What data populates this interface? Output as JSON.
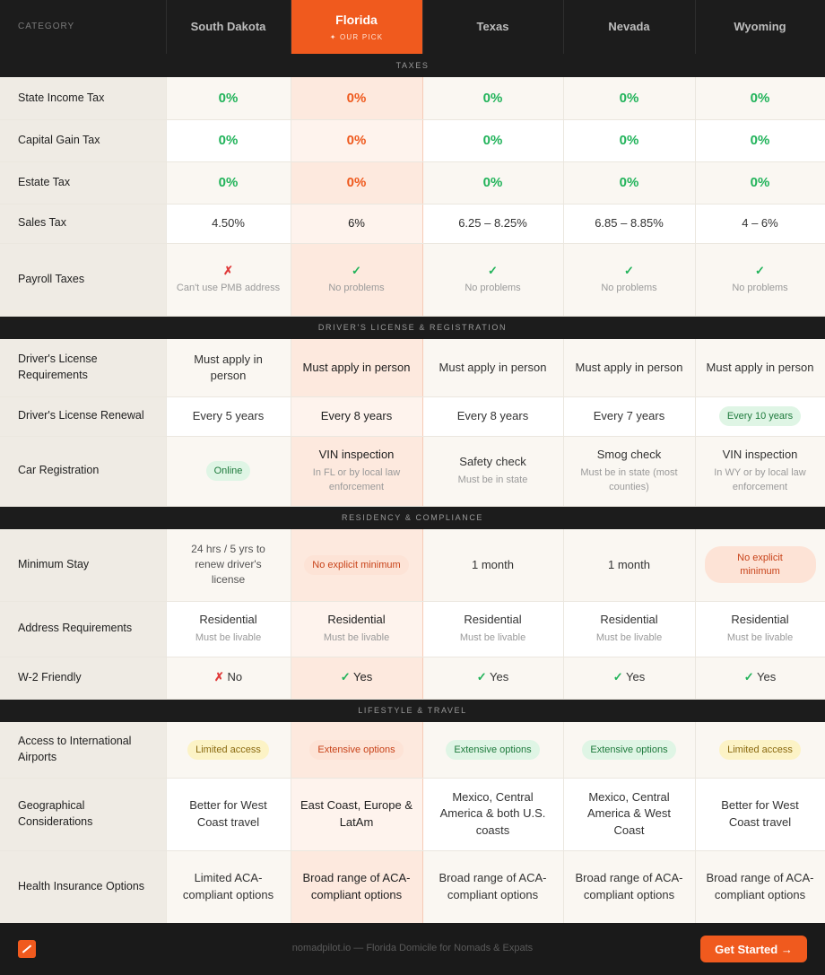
{
  "header": {
    "category_label": "CATEGORY",
    "states": [
      {
        "name": "South Dakota"
      },
      {
        "name": "Florida",
        "badge": "✦ OUR PICK"
      },
      {
        "name": "Texas"
      },
      {
        "name": "Nevada"
      },
      {
        "name": "Wyoming"
      }
    ]
  },
  "sections": [
    {
      "title": "TAXES",
      "rows": [
        {
          "label": "State Income Tax",
          "cells": [
            {
              "value": "0%"
            },
            {
              "value": "0%"
            },
            {
              "value": "0%"
            },
            {
              "value": "0%"
            },
            {
              "value": "0%"
            }
          ]
        },
        {
          "label": "Capital Gain Tax",
          "cells": [
            {
              "value": "0%"
            },
            {
              "value": "0%"
            },
            {
              "value": "0%"
            },
            {
              "value": "0%"
            },
            {
              "value": "0%"
            }
          ]
        },
        {
          "label": "Estate Tax",
          "cells": [
            {
              "value": "0%"
            },
            {
              "value": "0%"
            },
            {
              "value": "0%"
            },
            {
              "value": "0%"
            },
            {
              "value": "0%"
            }
          ]
        },
        {
          "label": "Sales Tax",
          "cells": [
            {
              "value": "4.50%"
            },
            {
              "value": "6%"
            },
            {
              "value": "6.25 – 8.25%"
            },
            {
              "value": "6.85 – 8.85%"
            },
            {
              "value": "4 – 6%"
            }
          ]
        },
        {
          "label": "Payroll Taxes",
          "cells": [
            {
              "mark": "✗",
              "note": "Can't use PMB address"
            },
            {
              "mark": "✓",
              "note": "No problems"
            },
            {
              "mark": "✓",
              "note": "No problems"
            },
            {
              "mark": "✓",
              "note": "No problems"
            },
            {
              "mark": "✓",
              "note": "No problems"
            }
          ]
        }
      ]
    },
    {
      "title": "DRIVER'S LICENSE & REGISTRATION",
      "rows": [
        {
          "label": "Driver's License Requirements",
          "cells": [
            {
              "value": "Must apply in person"
            },
            {
              "value": "Must apply in person"
            },
            {
              "value": "Must apply in person"
            },
            {
              "value": "Must apply in person"
            },
            {
              "value": "Must apply in person"
            }
          ]
        },
        {
          "label": "Driver's License Renewal",
          "cells": [
            {
              "value": "Every 5 years"
            },
            {
              "value": "Every 8 years"
            },
            {
              "value": "Every 8 years"
            },
            {
              "value": "Every 7 years"
            },
            {
              "pill": "Every 10 years",
              "color": "green"
            }
          ]
        },
        {
          "label": "Car Registration",
          "cells": [
            {
              "pill": "Online",
              "color": "green"
            },
            {
              "value": "VIN inspection",
              "note": "In FL or by local law enforcement"
            },
            {
              "value": "Safety check",
              "note": "Must be in state"
            },
            {
              "value": "Smog check",
              "note": "Must be in state (most counties)"
            },
            {
              "value": "VIN inspection",
              "note": "In WY or by local law enforcement"
            }
          ]
        }
      ]
    },
    {
      "title": "RESIDENCY & COMPLIANCE",
      "rows": [
        {
          "label": "Minimum Stay",
          "cells": [
            {
              "note": "24 hrs / 5 yrs to renew driver's license"
            },
            {
              "pill": "No explicit minimum",
              "color": "orange"
            },
            {
              "value": "1 month"
            },
            {
              "value": "1 month"
            },
            {
              "pill": "No explicit minimum",
              "color": "orange",
              "wide": true
            }
          ]
        },
        {
          "label": "Address Requirements",
          "cells": [
            {
              "value": "Residential",
              "note": "Must be livable"
            },
            {
              "value": "Residential",
              "note": "Must be livable"
            },
            {
              "value": "Residential",
              "note": "Must be livable"
            },
            {
              "value": "Residential",
              "note": "Must be livable"
            },
            {
              "value": "Residential",
              "note": "Must be livable"
            }
          ]
        },
        {
          "label": "W-2 Friendly",
          "cells": [
            {
              "mark": "✗",
              "value": "No"
            },
            {
              "mark": "✓",
              "value": "Yes"
            },
            {
              "mark": "✓",
              "value": "Yes"
            },
            {
              "mark": "✓",
              "value": "Yes"
            },
            {
              "mark": "✓",
              "value": "Yes"
            }
          ]
        }
      ]
    },
    {
      "title": "LIFESTYLE & TRAVEL",
      "rows": [
        {
          "label": "Access to International Airports",
          "cells": [
            {
              "pill": "Limited access",
              "color": "yellow"
            },
            {
              "pill": "Extensive options",
              "color": "orange"
            },
            {
              "pill": "Extensive options",
              "color": "green"
            },
            {
              "pill": "Extensive options",
              "color": "green"
            },
            {
              "pill": "Limited access",
              "color": "yellow"
            }
          ]
        },
        {
          "label": "Geographical Considerations",
          "cells": [
            {
              "value": "Better for West Coast travel"
            },
            {
              "value": "East Coast, Europe & LatAm"
            },
            {
              "value": "Mexico, Central America & both U.S. coasts"
            },
            {
              "value": "Mexico, Central America & West Coast"
            },
            {
              "value": "Better for West Coast travel"
            }
          ]
        },
        {
          "label": "Health Insurance Options",
          "cells": [
            {
              "value": "Limited ACA-compliant options"
            },
            {
              "value": "Broad range of ACA-compliant options"
            },
            {
              "value": "Broad range of ACA-compliant options"
            },
            {
              "value": "Broad range of ACA-compliant options"
            },
            {
              "value": "Broad range of ACA-compliant options"
            }
          ]
        }
      ]
    }
  ],
  "footer": {
    "text": "nomadpilot.io — Florida Domicile for Nomads & Expats",
    "cta_label": "Get Started →",
    "logo_icon": "compass-logo-icon"
  }
}
